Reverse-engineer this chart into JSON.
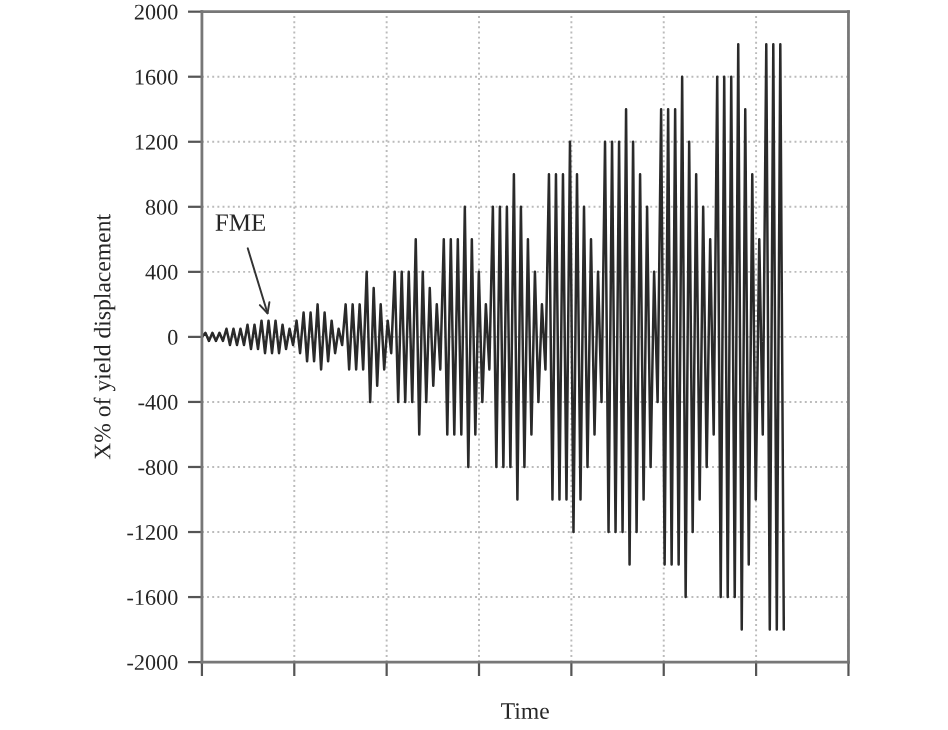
{
  "chart_data": {
    "type": "line",
    "xlabel": "Time",
    "ylabel": "X% of yield displacement",
    "categories": [
      null,
      null,
      null,
      null,
      null,
      null,
      null,
      null,
      null,
      null,
      null,
      null,
      null,
      null,
      null,
      null,
      null,
      null,
      null,
      null,
      null,
      null,
      null,
      null,
      null,
      null,
      null,
      null,
      null,
      null,
      null,
      null,
      null,
      null,
      null,
      null,
      null,
      null,
      null,
      null,
      null,
      null,
      null,
      null,
      null,
      null,
      null,
      null,
      null,
      null,
      null,
      null,
      null,
      null,
      null,
      null,
      null,
      null,
      null,
      null,
      null,
      null,
      null,
      null,
      null,
      null,
      null,
      null,
      null,
      null,
      null,
      null,
      null,
      null,
      null,
      null,
      null,
      null,
      null,
      null,
      null,
      null,
      null,
      null,
      null,
      null,
      null,
      null,
      null,
      null,
      null,
      null,
      null,
      null,
      null,
      null,
      null,
      null,
      null,
      null,
      null,
      null,
      null,
      null,
      null,
      null,
      null,
      null,
      null,
      null,
      null,
      null,
      null,
      null,
      null,
      null,
      null,
      null,
      null,
      null,
      null,
      null,
      null,
      null,
      null,
      null,
      null,
      null,
      null,
      null,
      null,
      null,
      null,
      null,
      null,
      null,
      null,
      null,
      null,
      null,
      null,
      null,
      null,
      null,
      null,
      null,
      null,
      null,
      null,
      null,
      null,
      null,
      null,
      null,
      null,
      null,
      null,
      null,
      null,
      null,
      null,
      null,
      null,
      null,
      null,
      null,
      null
    ],
    "series": [
      {
        "color": "#2a2a2a",
        "values": [
          0,
          25,
          -25,
          25,
          -25,
          25,
          -25,
          50,
          -50,
          50,
          -50,
          50,
          -50,
          75,
          -75,
          75,
          -75,
          100,
          -100,
          100,
          -100,
          100,
          -100,
          75,
          -75,
          50,
          -50,
          100,
          -100,
          150,
          -150,
          150,
          -150,
          200,
          -200,
          150,
          -150,
          100,
          -100,
          50,
          -50,
          200,
          -200,
          200,
          -200,
          200,
          -200,
          400,
          -400,
          300,
          -300,
          200,
          -200,
          100,
          -100,
          400,
          -400,
          400,
          -400,
          400,
          -400,
          600,
          -600,
          400,
          -400,
          300,
          -300,
          200,
          -200,
          600,
          -600,
          600,
          -600,
          600,
          -600,
          800,
          -800,
          600,
          -600,
          400,
          -400,
          200,
          -200,
          800,
          -800,
          800,
          -800,
          800,
          -800,
          1000,
          -1000,
          800,
          -800,
          600,
          -600,
          400,
          -400,
          200,
          -200,
          1000,
          -1000,
          1000,
          -1000,
          1000,
          -1000,
          1200,
          -1200,
          1000,
          -1000,
          800,
          -800,
          600,
          -600,
          400,
          -400,
          1200,
          -1200,
          1200,
          -1200,
          1200,
          -1200,
          1400,
          -1400,
          1200,
          -1200,
          1000,
          -1000,
          800,
          -800,
          400,
          -400,
          1400,
          -1400,
          1400,
          -1400,
          1400,
          -1400,
          1600,
          -1600,
          1200,
          -1200,
          1000,
          -1000,
          800,
          -800,
          600,
          -600,
          1600,
          -1600,
          1600,
          -1600,
          1600,
          -1600,
          1800,
          -1800,
          1400,
          -1400,
          1000,
          -1000,
          600,
          -600,
          1800,
          -1800,
          1800,
          -1800,
          1800,
          -1800
        ]
      }
    ],
    "ylim": [
      -2000,
      2000
    ],
    "yticks": [
      -2000,
      -1600,
      -1200,
      -800,
      -400,
      0,
      400,
      800,
      1200,
      1600,
      2000
    ],
    "grid": true,
    "annotations": [
      "FME"
    ]
  }
}
